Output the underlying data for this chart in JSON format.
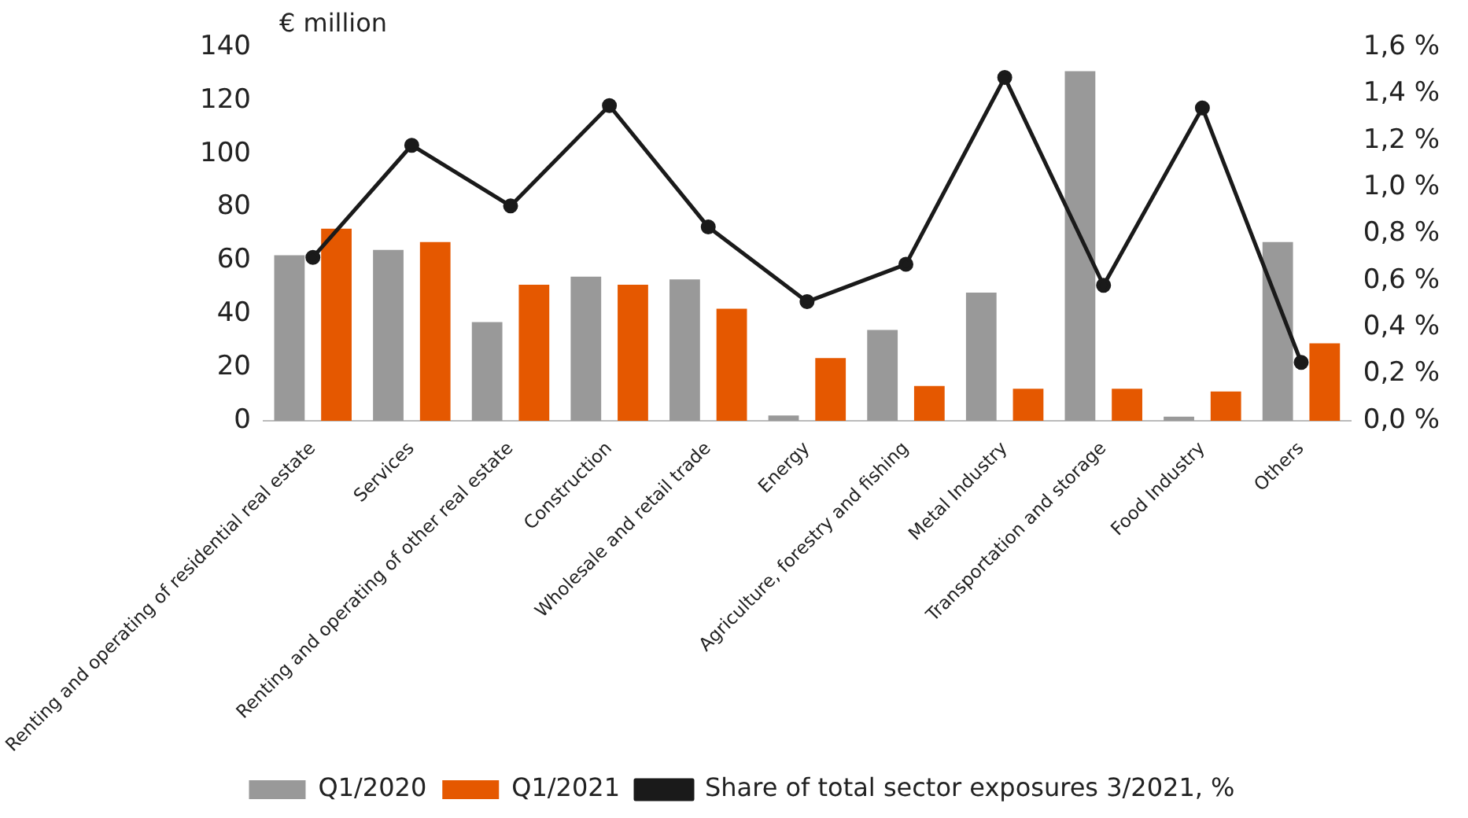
{
  "chart_data": {
    "type": "bar",
    "ylabel": "€ million",
    "categories": [
      "Renting and operating of residential real estate",
      "Services",
      "Renting and operating of other real estate",
      "Construction",
      "Wholesale and retail trade",
      "Energy",
      "Agriculture, forestry and fishing",
      "Metal Industry",
      "Transportation and storage",
      "Food Industry",
      "Others"
    ],
    "series": [
      {
        "name": "Q1/2020",
        "color": "#999999",
        "values": [
          62,
          64,
          37,
          54,
          53,
          2,
          34,
          48,
          131,
          1.5,
          67
        ]
      },
      {
        "name": "Q1/2021",
        "color": "#e55800",
        "values": [
          72,
          67,
          51,
          51,
          42,
          23.5,
          13,
          12,
          12,
          11,
          29
        ]
      },
      {
        "name": "Share of total sector exposures 3/2021, %",
        "type": "line",
        "axis": "y2",
        "color": "#1a1a1a",
        "values": [
          0.7,
          1.18,
          0.92,
          1.35,
          0.83,
          0.51,
          0.67,
          1.47,
          0.58,
          1.34,
          0.25
        ]
      }
    ],
    "ylim": [
      0,
      140
    ],
    "yticks": [
      0,
      20,
      40,
      60,
      80,
      100,
      120,
      140
    ],
    "y2lim": [
      0,
      1.6
    ],
    "y2ticks": [
      {
        "value": 0,
        "label": "0,0 %"
      },
      {
        "value": 0.2,
        "label": "0,2 %"
      },
      {
        "value": 0.4,
        "label": "0,4 %"
      },
      {
        "value": 0.6,
        "label": "0,6 %"
      },
      {
        "value": 0.8,
        "label": "0,8 %"
      },
      {
        "value": 1.0,
        "label": "1,0 %"
      },
      {
        "value": 1.2,
        "label": "1,2 %"
      },
      {
        "value": 1.4,
        "label": "1,4 %"
      },
      {
        "value": 1.6,
        "label": "1,6 %"
      }
    ],
    "grid": false,
    "legend": "bottom",
    "marker": "circle",
    "line_style": "solid"
  }
}
